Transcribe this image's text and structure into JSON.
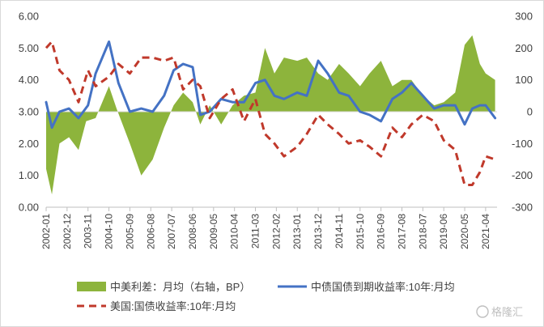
{
  "chart_data": {
    "type": "line",
    "title": "",
    "xlabel": "",
    "ylabel_left": "",
    "ylabel_right": "",
    "left_axis": {
      "min": 0,
      "max": 6,
      "ticks": [
        "0.00",
        "1.00",
        "2.00",
        "3.00",
        "4.00",
        "5.00",
        "6.00"
      ]
    },
    "right_axis": {
      "min": -300,
      "max": 300,
      "ticks": [
        "-300",
        "-200",
        "-100",
        "0",
        "100",
        "200",
        "300"
      ]
    },
    "x_labels": [
      "2002-01",
      "2002-12",
      "2003-11",
      "2004-10",
      "2005-09",
      "2006-08",
      "2007-07",
      "2008-06",
      "2009-05",
      "2010-04",
      "2011-03",
      "2012-02",
      "2013-01",
      "2013-12",
      "2014-11",
      "2015-10",
      "2016-09",
      "2017-08",
      "2018-07",
      "2019-06",
      "2020-05",
      "2021-04"
    ],
    "grid": false,
    "legend": "bottom",
    "series": [
      {
        "name": "中美利差：月均（右轴，BP）",
        "type": "area",
        "axis": "right",
        "color": "#8db43c",
        "points": [
          [
            "2002-01",
            -180
          ],
          [
            "2002-04",
            -260
          ],
          [
            "2002-08",
            -100
          ],
          [
            "2003-01",
            -80
          ],
          [
            "2003-06",
            -120
          ],
          [
            "2003-10",
            -30
          ],
          [
            "2004-03",
            -20
          ],
          [
            "2004-10",
            80
          ],
          [
            "2005-02",
            10
          ],
          [
            "2005-09",
            -100
          ],
          [
            "2006-03",
            -200
          ],
          [
            "2006-09",
            -150
          ],
          [
            "2007-03",
            -50
          ],
          [
            "2007-08",
            20
          ],
          [
            "2008-01",
            60
          ],
          [
            "2008-06",
            30
          ],
          [
            "2008-10",
            -40
          ],
          [
            "2009-03",
            20
          ],
          [
            "2009-09",
            -40
          ],
          [
            "2010-03",
            20
          ],
          [
            "2010-09",
            50
          ],
          [
            "2011-03",
            60
          ],
          [
            "2011-08",
            200
          ],
          [
            "2012-01",
            120
          ],
          [
            "2012-06",
            170
          ],
          [
            "2013-01",
            160
          ],
          [
            "2013-06",
            170
          ],
          [
            "2013-12",
            120
          ],
          [
            "2014-05",
            100
          ],
          [
            "2014-11",
            150
          ],
          [
            "2015-04",
            120
          ],
          [
            "2015-10",
            80
          ],
          [
            "2016-03",
            120
          ],
          [
            "2016-09",
            160
          ],
          [
            "2017-03",
            80
          ],
          [
            "2017-08",
            100
          ],
          [
            "2018-01",
            100
          ],
          [
            "2018-07",
            50
          ],
          [
            "2019-01",
            20
          ],
          [
            "2019-06",
            30
          ],
          [
            "2019-12",
            60
          ],
          [
            "2020-05",
            210
          ],
          [
            "2020-09",
            240
          ],
          [
            "2021-01",
            150
          ],
          [
            "2021-04",
            120
          ],
          [
            "2021-09",
            100
          ]
        ]
      },
      {
        "name": "中债国债到期收益率:10年:月均",
        "type": "line",
        "axis": "left",
        "color": "#4472c4",
        "points": [
          [
            "2002-01",
            3.3
          ],
          [
            "2002-04",
            2.5
          ],
          [
            "2002-08",
            3.0
          ],
          [
            "2003-01",
            3.1
          ],
          [
            "2003-06",
            2.8
          ],
          [
            "2003-11",
            3.2
          ],
          [
            "2004-03",
            4.2
          ],
          [
            "2004-10",
            5.2
          ],
          [
            "2005-03",
            3.9
          ],
          [
            "2005-09",
            3.0
          ],
          [
            "2006-03",
            3.1
          ],
          [
            "2006-09",
            3.0
          ],
          [
            "2007-03",
            3.5
          ],
          [
            "2007-08",
            4.3
          ],
          [
            "2008-01",
            4.5
          ],
          [
            "2008-06",
            4.4
          ],
          [
            "2008-10",
            2.9
          ],
          [
            "2009-03",
            3.0
          ],
          [
            "2009-09",
            3.4
          ],
          [
            "2010-03",
            3.3
          ],
          [
            "2010-09",
            3.3
          ],
          [
            "2011-03",
            3.9
          ],
          [
            "2011-08",
            4.0
          ],
          [
            "2012-01",
            3.5
          ],
          [
            "2012-06",
            3.4
          ],
          [
            "2013-01",
            3.6
          ],
          [
            "2013-06",
            3.5
          ],
          [
            "2013-12",
            4.6
          ],
          [
            "2014-05",
            4.2
          ],
          [
            "2014-11",
            3.6
          ],
          [
            "2015-04",
            3.5
          ],
          [
            "2015-10",
            3.0
          ],
          [
            "2016-03",
            2.9
          ],
          [
            "2016-09",
            2.7
          ],
          [
            "2017-03",
            3.4
          ],
          [
            "2017-08",
            3.6
          ],
          [
            "2018-01",
            3.9
          ],
          [
            "2018-07",
            3.5
          ],
          [
            "2019-01",
            3.1
          ],
          [
            "2019-06",
            3.2
          ],
          [
            "2019-12",
            3.2
          ],
          [
            "2020-05",
            2.6
          ],
          [
            "2020-09",
            3.1
          ],
          [
            "2021-01",
            3.2
          ],
          [
            "2021-04",
            3.2
          ],
          [
            "2021-09",
            2.8
          ]
        ]
      },
      {
        "name": "美国:国债收益率:10年:月均",
        "type": "line",
        "dashed": true,
        "axis": "left",
        "color": "#c0392b",
        "points": [
          [
            "2002-01",
            5.0
          ],
          [
            "2002-04",
            5.2
          ],
          [
            "2002-08",
            4.3
          ],
          [
            "2003-01",
            4.0
          ],
          [
            "2003-06",
            3.3
          ],
          [
            "2003-11",
            4.3
          ],
          [
            "2004-03",
            3.8
          ],
          [
            "2004-10",
            4.1
          ],
          [
            "2005-03",
            4.5
          ],
          [
            "2005-09",
            4.2
          ],
          [
            "2006-03",
            4.7
          ],
          [
            "2006-09",
            4.7
          ],
          [
            "2007-03",
            4.6
          ],
          [
            "2007-08",
            4.7
          ],
          [
            "2008-01",
            3.7
          ],
          [
            "2008-06",
            4.0
          ],
          [
            "2008-10",
            3.8
          ],
          [
            "2009-03",
            2.8
          ],
          [
            "2009-09",
            3.4
          ],
          [
            "2010-03",
            3.7
          ],
          [
            "2010-09",
            2.7
          ],
          [
            "2011-03",
            3.4
          ],
          [
            "2011-08",
            2.3
          ],
          [
            "2012-01",
            2.0
          ],
          [
            "2012-06",
            1.6
          ],
          [
            "2013-01",
            1.9
          ],
          [
            "2013-06",
            2.3
          ],
          [
            "2013-12",
            2.9
          ],
          [
            "2014-05",
            2.6
          ],
          [
            "2014-11",
            2.3
          ],
          [
            "2015-04",
            2.0
          ],
          [
            "2015-10",
            2.1
          ],
          [
            "2016-03",
            1.9
          ],
          [
            "2016-09",
            1.6
          ],
          [
            "2017-03",
            2.5
          ],
          [
            "2017-08",
            2.2
          ],
          [
            "2018-01",
            2.6
          ],
          [
            "2018-07",
            2.9
          ],
          [
            "2019-01",
            2.7
          ],
          [
            "2019-06",
            2.1
          ],
          [
            "2019-12",
            1.8
          ],
          [
            "2020-05",
            0.7
          ],
          [
            "2020-09",
            0.7
          ],
          [
            "2021-01",
            1.1
          ],
          [
            "2021-04",
            1.6
          ],
          [
            "2021-09",
            1.5
          ]
        ]
      }
    ]
  },
  "watermark": "格隆汇"
}
